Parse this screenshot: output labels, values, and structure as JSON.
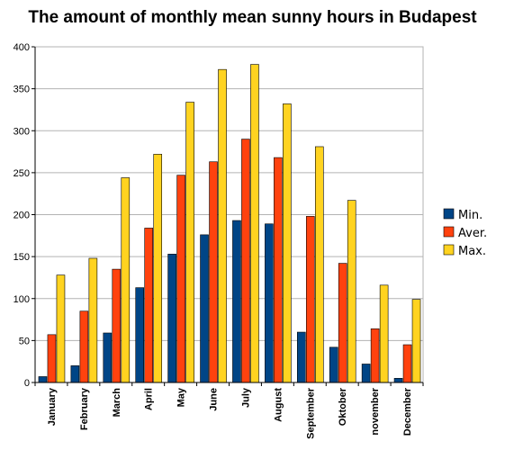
{
  "chart_data": {
    "type": "bar",
    "title": "The amount of monthly mean sunny hours in Budapest",
    "xlabel": "",
    "ylabel": "",
    "ylim": [
      0,
      400
    ],
    "yticks": [
      0,
      50,
      100,
      150,
      200,
      250,
      300,
      350,
      400
    ],
    "grid": true,
    "legend_position": "right",
    "categories": [
      "January",
      "February",
      "March",
      "April",
      "May",
      "June",
      "July",
      "August",
      "September",
      "Oktober",
      "november",
      "December"
    ],
    "series": [
      {
        "name": "Min.",
        "color": "#004586",
        "values": [
          7,
          20,
          59,
          113,
          153,
          176,
          193,
          189,
          60,
          42,
          22,
          5
        ]
      },
      {
        "name": "Aver.",
        "color": "#FF420E",
        "values": [
          57,
          85,
          135,
          184,
          247,
          263,
          290,
          268,
          198,
          142,
          64,
          45
        ]
      },
      {
        "name": "Max.",
        "color": "#FFD320",
        "values": [
          128,
          148,
          244,
          272,
          334,
          373,
          379,
          332,
          281,
          217,
          116,
          99
        ]
      }
    ]
  }
}
